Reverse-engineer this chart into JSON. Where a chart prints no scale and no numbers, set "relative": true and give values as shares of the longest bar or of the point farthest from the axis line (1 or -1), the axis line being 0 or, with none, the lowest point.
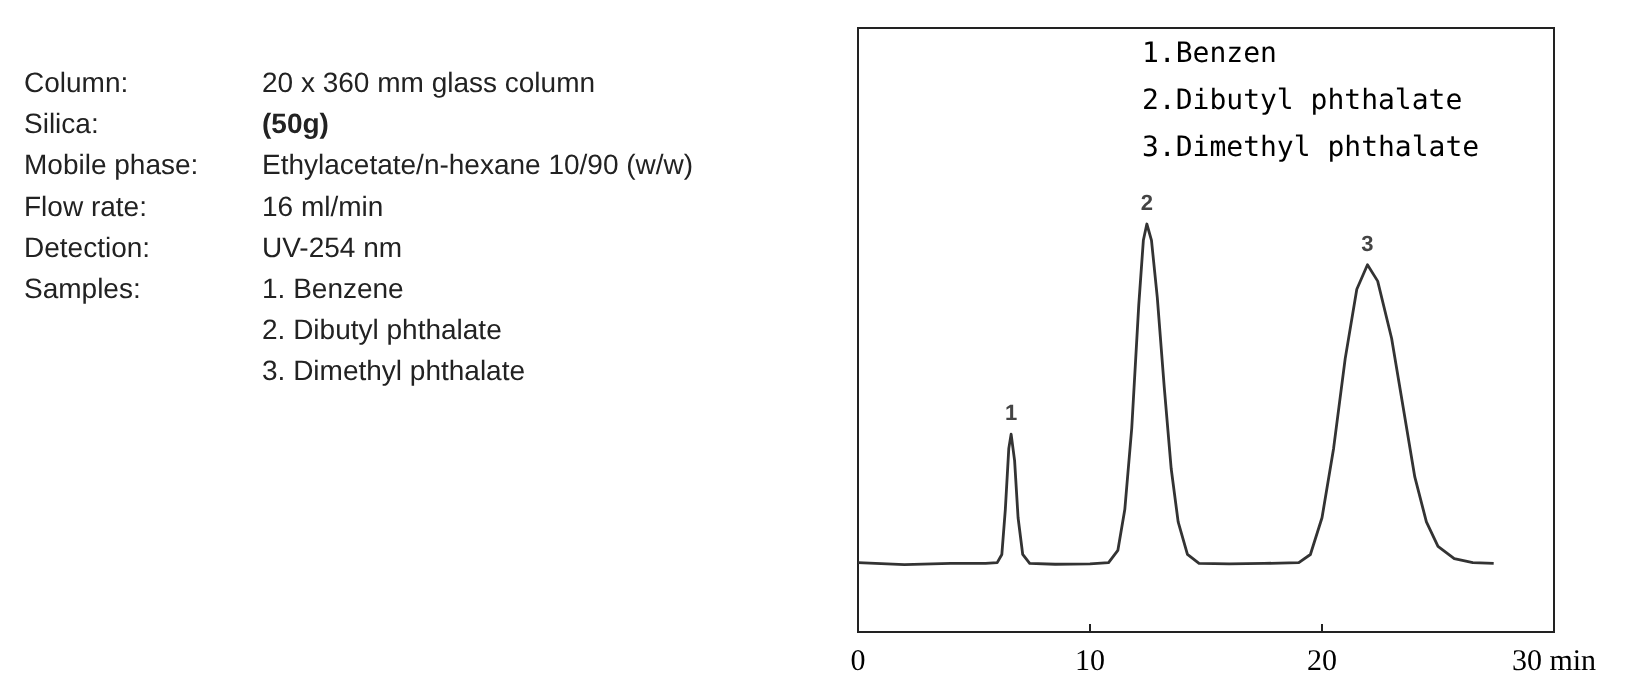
{
  "chart_data": [
    {
      "type": "other",
      "annotations": [
        "Column:",
        "20 x 360 mm glass column",
        "Silica:",
        "(50g)",
        "Mobile phase:",
        "Ethylacetate/n-hexane 10/90 (w/w)",
        "Flow rate:",
        "16 ml/min",
        "Detection:",
        "UV-254 nm",
        "Samples:",
        "1. Benzene",
        "2. Dibutyl phthalate",
        "3. Dimethyl phthalate"
      ]
    },
    {
      "type": "line",
      "relative": true,
      "tick_labels": "x",
      "grid": false,
      "xlim": [
        0,
        30
      ],
      "xticks": [
        0,
        10,
        20,
        {
          "value": 30,
          "label": "30 min"
        }
      ],
      "series": [
        {
          "color": "#333333",
          "x": [
            0,
            2,
            4,
            5.5,
            6.0,
            6.2,
            6.35,
            6.5,
            6.6,
            6.75,
            6.9,
            7.1,
            7.4,
            8.5,
            10.0,
            10.8,
            11.2,
            11.5,
            11.8,
            12.1,
            12.3,
            12.45,
            12.65,
            12.9,
            13.2,
            13.5,
            13.8,
            14.2,
            14.7,
            16,
            17.5,
            19.0,
            19.5,
            20.0,
            20.5,
            21.0,
            21.5,
            21.96,
            22.4,
            23.0,
            23.5,
            24.0,
            24.5,
            25.0,
            25.7,
            26.5,
            27.4
          ],
          "values": [
            0.17,
            0.165,
            0.168,
            0.168,
            0.17,
            0.19,
            0.3,
            0.45,
            0.485,
            0.42,
            0.28,
            0.19,
            0.168,
            0.166,
            0.167,
            0.17,
            0.2,
            0.3,
            0.5,
            0.8,
            0.96,
            1.0,
            0.96,
            0.82,
            0.6,
            0.4,
            0.27,
            0.19,
            0.168,
            0.167,
            0.168,
            0.17,
            0.19,
            0.28,
            0.45,
            0.67,
            0.84,
            0.9,
            0.86,
            0.72,
            0.55,
            0.38,
            0.27,
            0.21,
            0.18,
            0.17,
            0.168
          ]
        }
      ],
      "annotations": [
        "1.Benzen",
        "2.Dibutyl phthalate",
        "3.Dimethyl phthalate",
        {
          "text": "1",
          "x": 6.6,
          "y": 0.485
        },
        {
          "text": "2",
          "x": 12.45,
          "y": 1.0
        },
        {
          "text": "3",
          "x": 21.96,
          "y": 0.9
        }
      ]
    }
  ]
}
